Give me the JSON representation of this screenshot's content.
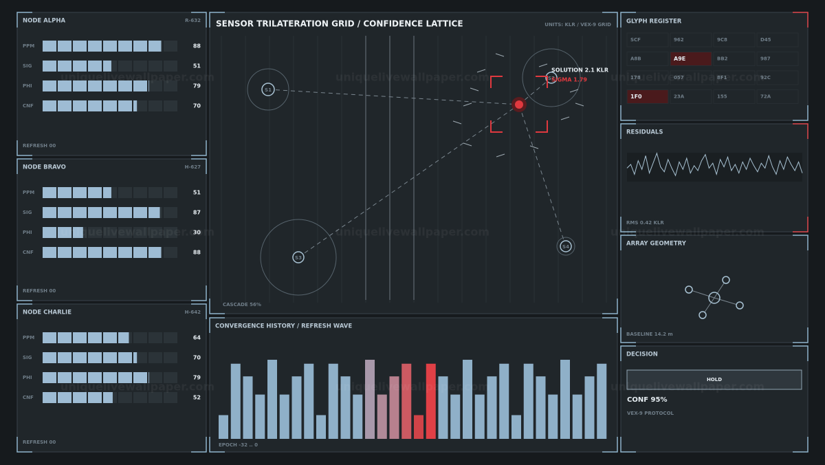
{
  "watermark": "uniquelivewallpaper.com",
  "nodes": [
    {
      "title": "NODE ALPHA",
      "code": "R-632",
      "metrics": [
        {
          "label": "PPM",
          "value": 88
        },
        {
          "label": "SIG",
          "value": 51
        },
        {
          "label": "PHI",
          "value": 79
        },
        {
          "label": "CNF",
          "value": 70
        }
      ],
      "footer": "REFRESH 00"
    },
    {
      "title": "NODE BRAVO",
      "code": "H-627",
      "metrics": [
        {
          "label": "PPM",
          "value": 51
        },
        {
          "label": "SIG",
          "value": 87
        },
        {
          "label": "PHI",
          "value": 30
        },
        {
          "label": "CNF",
          "value": 88
        }
      ],
      "footer": "REFRESH 00"
    },
    {
      "title": "NODE CHARLIE",
      "code": "H-642",
      "metrics": [
        {
          "label": "PPM",
          "value": 64
        },
        {
          "label": "SIG",
          "value": 70
        },
        {
          "label": "PHI",
          "value": 79
        },
        {
          "label": "CNF",
          "value": 52
        }
      ],
      "footer": "REFRESH 00"
    }
  ],
  "trilateration": {
    "title": "SENSOR TRILATERATION GRID / CONFIDENCE LATTICE",
    "units": "UNITS: KLR / VEX-9 GRID",
    "sensors": [
      "S1",
      "S2",
      "S3",
      "S4"
    ],
    "solution": "SOLUTION 2.1 KLR",
    "sigma": "SIGMA 1.79",
    "cascade": "CASCADE 56%"
  },
  "history": {
    "title": "CONVERGENCE HISTORY / REFRESH WAVE",
    "values": [
      30,
      95,
      79,
      56,
      100,
      56,
      79,
      95,
      30,
      95,
      79,
      56,
      100,
      56,
      79,
      95,
      30,
      95,
      79,
      56,
      100,
      56,
      79,
      95,
      30,
      95,
      79,
      56,
      100,
      56,
      79,
      95
    ],
    "colors": [
      "#8fb0c8",
      "#8fb0c8",
      "#8fb0c8",
      "#8fb0c8",
      "#8fb0c8",
      "#8fb0c8",
      "#8fb0c8",
      "#8fb0c8",
      "#8fb0c8",
      "#8fb0c8",
      "#8fb0c8",
      "#8fb0c8",
      "#a898aa",
      "#b08a98",
      "#b8808e",
      "#cc5a62",
      "#d04348",
      "#e04046",
      "#8fb0c8",
      "#8fb0c8",
      "#8fb0c8",
      "#8fb0c8",
      "#8fb0c8",
      "#8fb0c8",
      "#8fb0c8",
      "#8fb0c8",
      "#8fb0c8",
      "#8fb0c8",
      "#8fb0c8",
      "#8fb0c8",
      "#8fb0c8",
      "#8fb0c8"
    ],
    "footer": "EPOCH -32 .. 0"
  },
  "glyphs": {
    "title": "GLYPH REGISTER",
    "cells": [
      [
        "SCF",
        "962",
        "9C8",
        "D45"
      ],
      [
        "A8B",
        "A9E",
        "BB2",
        "987"
      ],
      [
        "178",
        "057",
        "8F1",
        "92C"
      ],
      [
        "1F0",
        "23A",
        "155",
        "72A"
      ]
    ],
    "active": [
      [
        1,
        1
      ],
      [
        3,
        0
      ]
    ]
  },
  "residuals": {
    "title": "RESIDUALS",
    "values": [
      2,
      5,
      -3,
      8,
      1,
      12,
      -2,
      6,
      14,
      3,
      -1,
      9,
      2,
      -4,
      7,
      1,
      10,
      -2,
      4,
      0,
      8,
      13,
      2,
      6,
      -3,
      9,
      3,
      11,
      0,
      5,
      -2,
      7,
      1,
      10,
      4,
      -1,
      6,
      2,
      12,
      3,
      -3,
      8,
      1,
      11,
      5,
      0,
      7,
      -2
    ],
    "footer": "RMS 0.42 KLR"
  },
  "geometry": {
    "title": "ARRAY GEOMETRY",
    "footer": "BASELINE 14.2 m"
  },
  "decision": {
    "title": "DECISION",
    "button": "HOLD",
    "confidence": "CONF 95%",
    "protocol": "VEX-9 PROTOCOL"
  }
}
